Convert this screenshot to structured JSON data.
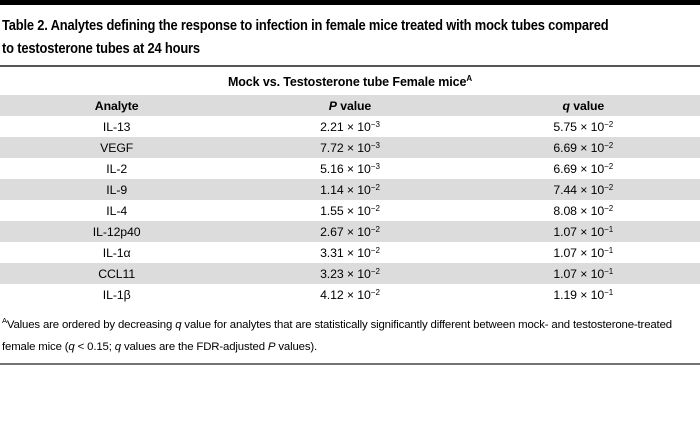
{
  "table": {
    "title_line1": "Table 2. Analytes defining the response to infection in female mice treated with mock tubes compared",
    "title_line2": "to testosterone tubes at 24 hours",
    "subtitle": {
      "text": "Mock vs. Testosterone tube Female mice",
      "sup": "A"
    },
    "columns": {
      "analyte": "Analyte",
      "p_symbol": "P",
      "p_rest": " value",
      "q_symbol": "q",
      "q_rest": " value"
    },
    "rows": [
      {
        "analyte": "IL-13",
        "p_base": "2.21 × 10",
        "p_exp": "−3",
        "q_base": "5.75 × 10",
        "q_exp": "−2"
      },
      {
        "analyte": "VEGF",
        "p_base": "7.72 × 10",
        "p_exp": "−3",
        "q_base": "6.69 × 10",
        "q_exp": "−2"
      },
      {
        "analyte": "IL-2",
        "p_base": "5.16 × 10",
        "p_exp": "−3",
        "q_base": "6.69 × 10",
        "q_exp": "−2"
      },
      {
        "analyte": "IL-9",
        "p_base": "1.14 × 10",
        "p_exp": "−2",
        "q_base": "7.44 × 10",
        "q_exp": "−2"
      },
      {
        "analyte": "IL-4",
        "p_base": "1.55 × 10",
        "p_exp": "−2",
        "q_base": "8.08 × 10",
        "q_exp": "−2"
      },
      {
        "analyte": "IL-12p40",
        "p_base": "2.67 × 10",
        "p_exp": "−2",
        "q_base": "1.07 × 10",
        "q_exp": "−1"
      },
      {
        "analyte": "IL-1α",
        "p_base": "3.31 × 10",
        "p_exp": "−2",
        "q_base": "1.07 × 10",
        "q_exp": "−1"
      },
      {
        "analyte": "CCL11",
        "p_base": "3.23 × 10",
        "p_exp": "−2",
        "q_base": "1.07 × 10",
        "q_exp": "−1"
      },
      {
        "analyte": "IL-1β",
        "p_base": "4.12 × 10",
        "p_exp": "−2",
        "q_base": "1.19 × 10",
        "q_exp": "−1"
      }
    ],
    "footnote": {
      "sup": "A",
      "segments": [
        {
          "text": "Values are ordered by decreasing ",
          "italic": false
        },
        {
          "text": "q",
          "italic": true
        },
        {
          "text": " value for analytes that are statistically significantly different between mock- and testosterone-treated female mice (",
          "italic": false
        },
        {
          "text": "q",
          "italic": true
        },
        {
          "text": " < 0.15; ",
          "italic": false
        },
        {
          "text": "q",
          "italic": true
        },
        {
          "text": " values are the FDR-adjusted ",
          "italic": false
        },
        {
          "text": "P",
          "italic": true
        },
        {
          "text": " values).",
          "italic": false
        }
      ]
    },
    "colors": {
      "stripe": "#dcdcdc",
      "top_bar": "#000000",
      "rule": "#565656"
    }
  }
}
